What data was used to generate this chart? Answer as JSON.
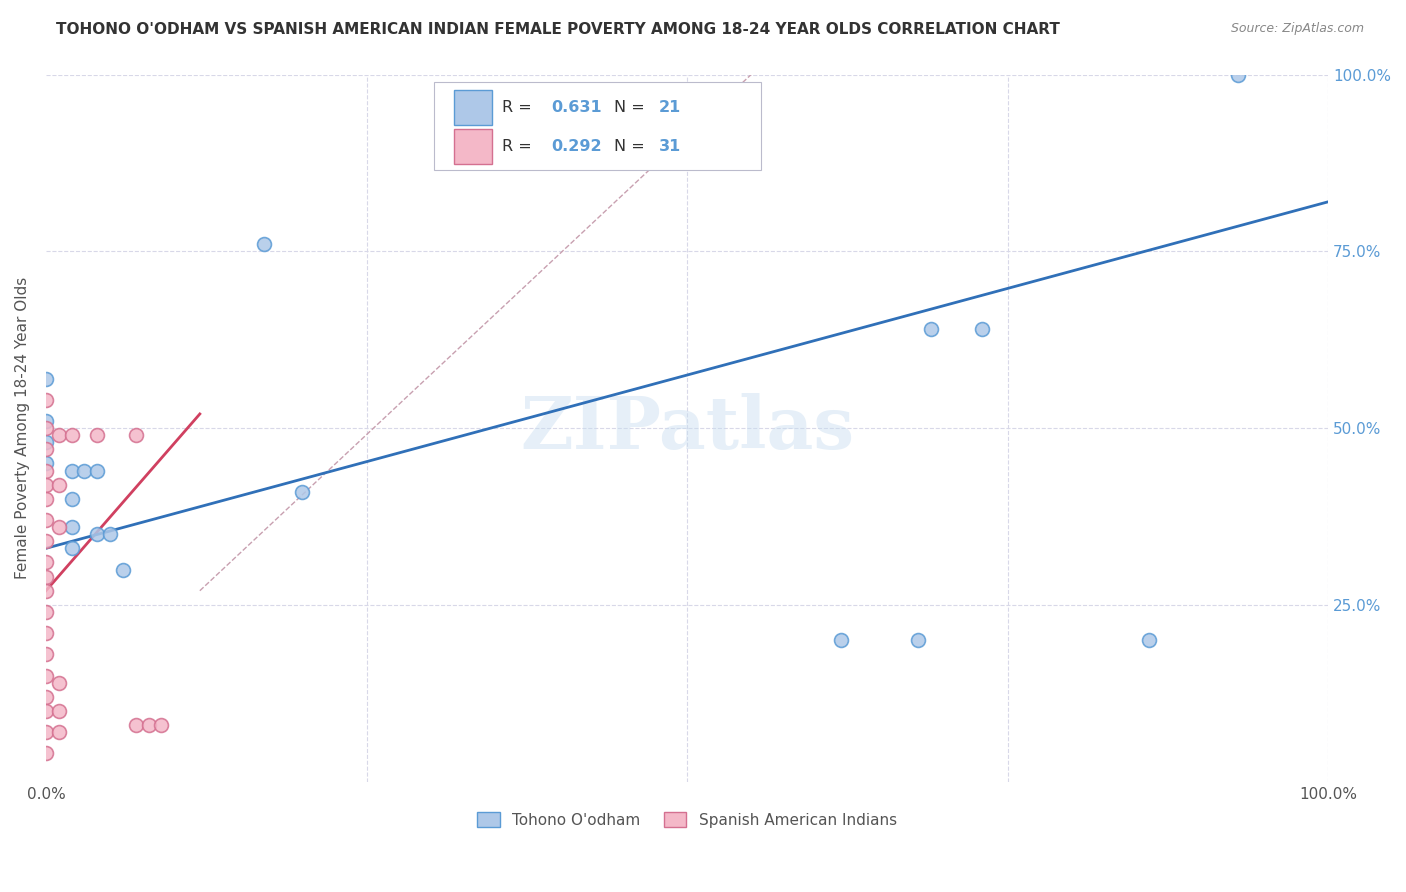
{
  "title": "TOHONO O'ODHAM VS SPANISH AMERICAN INDIAN FEMALE POVERTY AMONG 18-24 YEAR OLDS CORRELATION CHART",
  "source": "Source: ZipAtlas.com",
  "ylabel": "Female Poverty Among 18-24 Year Olds",
  "watermark": "ZIPatlas",
  "blue_R": 0.631,
  "blue_N": 21,
  "pink_R": 0.292,
  "pink_N": 31,
  "legend_label1": "Tohono O'odham",
  "legend_label2": "Spanish American Indians",
  "xlim": [
    0,
    1.0
  ],
  "ylim": [
    0,
    1.0
  ],
  "blue_points": [
    [
      0.0,
      0.57
    ],
    [
      0.0,
      0.51
    ],
    [
      0.0,
      0.48
    ],
    [
      0.0,
      0.45
    ],
    [
      0.02,
      0.44
    ],
    [
      0.02,
      0.4
    ],
    [
      0.02,
      0.36
    ],
    [
      0.02,
      0.33
    ],
    [
      0.03,
      0.44
    ],
    [
      0.04,
      0.44
    ],
    [
      0.04,
      0.35
    ],
    [
      0.05,
      0.35
    ],
    [
      0.06,
      0.3
    ],
    [
      0.17,
      0.76
    ],
    [
      0.2,
      0.41
    ],
    [
      0.62,
      0.2
    ],
    [
      0.69,
      0.64
    ],
    [
      0.73,
      0.64
    ],
    [
      0.86,
      0.2
    ],
    [
      0.93,
      1.0
    ],
    [
      0.68,
      0.2
    ]
  ],
  "pink_points": [
    [
      0.0,
      0.54
    ],
    [
      0.0,
      0.5
    ],
    [
      0.0,
      0.47
    ],
    [
      0.0,
      0.44
    ],
    [
      0.0,
      0.42
    ],
    [
      0.0,
      0.4
    ],
    [
      0.0,
      0.37
    ],
    [
      0.0,
      0.34
    ],
    [
      0.0,
      0.31
    ],
    [
      0.0,
      0.29
    ],
    [
      0.0,
      0.27
    ],
    [
      0.0,
      0.24
    ],
    [
      0.0,
      0.21
    ],
    [
      0.0,
      0.18
    ],
    [
      0.0,
      0.15
    ],
    [
      0.0,
      0.12
    ],
    [
      0.0,
      0.1
    ],
    [
      0.0,
      0.07
    ],
    [
      0.0,
      0.04
    ],
    [
      0.01,
      0.49
    ],
    [
      0.01,
      0.42
    ],
    [
      0.01,
      0.36
    ],
    [
      0.01,
      0.14
    ],
    [
      0.01,
      0.1
    ],
    [
      0.01,
      0.07
    ],
    [
      0.02,
      0.49
    ],
    [
      0.04,
      0.49
    ],
    [
      0.07,
      0.49
    ],
    [
      0.07,
      0.08
    ],
    [
      0.08,
      0.08
    ],
    [
      0.09,
      0.08
    ]
  ],
  "blue_line_x": [
    0.0,
    1.0
  ],
  "blue_line_y": [
    0.33,
    0.82
  ],
  "pink_line_x": [
    0.0,
    0.12
  ],
  "pink_line_y": [
    0.27,
    0.52
  ],
  "diag_line_x": [
    0.12,
    0.55
  ],
  "diag_line_y": [
    0.27,
    1.0
  ],
  "blue_color": "#aec8e8",
  "pink_color": "#f4b8c8",
  "blue_edge_color": "#5b9bd5",
  "pink_edge_color": "#d47090",
  "blue_line_color": "#3070b8",
  "pink_line_color": "#d04060",
  "diag_color": "#c8a0b0",
  "grid_color": "#d8d8e8",
  "title_color": "#333333",
  "axis_label_color": "#555555",
  "right_tick_color": "#5b9bd5",
  "marker_size": 100,
  "marker_linewidth": 1.2
}
